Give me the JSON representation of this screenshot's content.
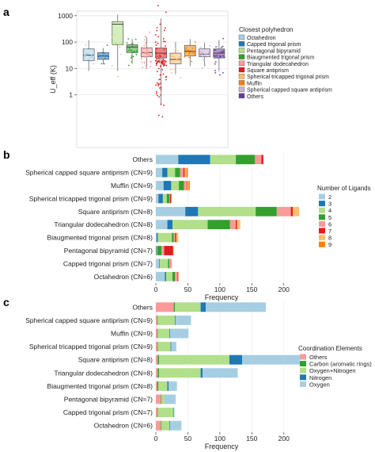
{
  "chart_data": [
    {
      "panel": "a",
      "type": "box",
      "ylabel": "U_eff (K)",
      "yscale": "log",
      "ylim": [
        0.01,
        1500
      ],
      "yticks": [
        {
          "v": 1,
          "label": "1"
        },
        {
          "v": 10,
          "label": "10"
        },
        {
          "v": 100,
          "label": "100"
        },
        {
          "v": 1000,
          "label": "1000"
        }
      ],
      "legend": {
        "title": "Closest polyhedron",
        "placement": "right",
        "items": [
          "Octahedron",
          "Capped trigonal prism",
          "Pentagonal bipyramid",
          "Biaugmented trigonal prism",
          "Triangular dodecahedron",
          "Square antiprism",
          "Spherical tricapped trigonal prism",
          "Muffin",
          "Spherical capped square antiprism",
          "Others"
        ]
      },
      "series": [
        {
          "name": "Octahedron",
          "color": "#a6cee3",
          "q1": 20,
          "median": 32,
          "q3": 55,
          "wlo": 8,
          "whi": 120,
          "n": 18
        },
        {
          "name": "Capped trigonal prism",
          "color": "#1f78b4",
          "q1": 22,
          "median": 30,
          "q3": 40,
          "wlo": 15,
          "whi": 60,
          "n": 14
        },
        {
          "name": "Pentagonal bipyramid",
          "color": "#b2df8a",
          "q1": 80,
          "median": 480,
          "q3": 600,
          "wlo": 8,
          "whi": 1100,
          "n": 12
        },
        {
          "name": "Biaugmented trigonal prism",
          "color": "#33a02c",
          "q1": 40,
          "median": 65,
          "q3": 80,
          "wlo": 15,
          "whi": 130,
          "n": 25
        },
        {
          "name": "Triangular dodecahedron",
          "color": "#fb9a99",
          "q1": 28,
          "median": 40,
          "q3": 60,
          "wlo": 10,
          "whi": 150,
          "n": 45
        },
        {
          "name": "Square antiprism",
          "color": "#e31a1c",
          "q1": 25,
          "median": 38,
          "q3": 60,
          "wlo": 0.4,
          "whi": 800,
          "n": 90
        },
        {
          "name": "Spherical tricapped trigonal prism",
          "color": "#fdbf6f",
          "q1": 15,
          "median": 22,
          "q3": 38,
          "wlo": 6,
          "whi": 100,
          "n": 15
        },
        {
          "name": "Muffin",
          "color": "#ff7f00",
          "q1": 30,
          "median": 45,
          "q3": 75,
          "wlo": 12,
          "whi": 130,
          "n": 20
        },
        {
          "name": "Spherical capped square antiprism",
          "color": "#cab2d6",
          "q1": 28,
          "median": 35,
          "q3": 55,
          "wlo": 12,
          "whi": 95,
          "n": 22
        },
        {
          "name": "Others",
          "color": "#6a3d9a",
          "q1": 25,
          "median": 38,
          "q3": 55,
          "wlo": 8,
          "whi": 120,
          "n": 30
        }
      ]
    },
    {
      "panel": "b",
      "type": "stacked-bar-horizontal",
      "xlabel": "Frequency",
      "xlim": [
        0,
        230
      ],
      "xticks": [
        0,
        50,
        100,
        150,
        200
      ],
      "categories": [
        "Others",
        "Spherical capped square antiprism (CN=9)",
        "Muffin (CN=9)",
        "Spherical tricapped trigonal prism (CN=9)",
        "Square antiprism (CN=8)",
        "Triangular dodecahedron (CN=8)",
        "Biaugmented trigonal prism (CN=8)",
        "Pentagonal bipyramid (CN=7)",
        "Capped trigonal prism (CN=7)",
        "Octahedron (CN=6)"
      ],
      "legend": {
        "title": "Number of Ligands",
        "placement": "right"
      },
      "series": [
        {
          "name": "2",
          "color": "#a6cee3",
          "values": [
            35,
            10,
            12,
            4,
            46,
            18,
            1,
            0,
            5,
            14
          ]
        },
        {
          "name": "3",
          "color": "#1f78b4",
          "values": [
            50,
            8,
            12,
            7,
            20,
            8,
            2,
            1,
            1,
            2
          ]
        },
        {
          "name": "4",
          "color": "#b2df8a",
          "values": [
            40,
            12,
            12,
            6,
            90,
            55,
            22,
            1,
            13,
            10
          ]
        },
        {
          "name": "5",
          "color": "#33a02c",
          "values": [
            30,
            8,
            8,
            4,
            33,
            35,
            3,
            7,
            2,
            4
          ]
        },
        {
          "name": "6",
          "color": "#fb9a99",
          "values": [
            10,
            5,
            4,
            1,
            22,
            9,
            2,
            4,
            4,
            4
          ]
        },
        {
          "name": "7",
          "color": "#e31a1c",
          "values": [
            3,
            2,
            1,
            2,
            3,
            2,
            2,
            14,
            0,
            1
          ]
        },
        {
          "name": "8",
          "color": "#fdbf6f",
          "values": [
            0,
            3,
            2,
            1,
            10,
            5,
            3,
            1,
            0,
            1
          ]
        },
        {
          "name": "9",
          "color": "#ff7f00",
          "values": [
            0,
            2,
            2,
            0,
            0,
            0,
            0,
            0,
            0,
            0
          ]
        }
      ]
    },
    {
      "panel": "c",
      "type": "stacked-bar-horizontal",
      "xlabel": "Frequency",
      "xlim": [
        0,
        230
      ],
      "xticks": [
        0,
        50,
        100,
        150,
        200
      ],
      "categories": [
        "Others",
        "Spherical capped square antiprism (CN=9)",
        "Muffin (CN=9)",
        "Spherical tricapped trigonal prism (CN=9)",
        "Square antiprism (CN=8)",
        "Triangular dodecahedron (CN=8)",
        "Biaugmented trigonal prism (CN=8)",
        "Pentagonal bipyramid (CN=7)",
        "Capped trigonal prism (CN=7)",
        "Octahedron (CN=6)"
      ],
      "legend": {
        "title": "Coordination Elements",
        "placement": "right"
      },
      "series": [
        {
          "name": "Others",
          "color": "#fb9a99",
          "values": [
            28,
            2,
            2,
            2,
            3,
            3,
            2,
            8,
            2,
            8
          ]
        },
        {
          "name": "Carbon (aromatic rings)",
          "color": "#33a02c",
          "values": [
            2,
            1,
            1,
            1,
            2,
            2,
            2,
            1,
            1,
            1
          ]
        },
        {
          "name": "Oxygen+Nitrogen",
          "color": "#b2df8a",
          "values": [
            40,
            27,
            18,
            20,
            110,
            65,
            14,
            4,
            24,
            12
          ]
        },
        {
          "name": "Nitrogen",
          "color": "#1f78b4",
          "values": [
            8,
            1,
            1,
            1,
            20,
            3,
            2,
            0,
            1,
            1
          ]
        },
        {
          "name": "Oxygen",
          "color": "#a6cee3",
          "values": [
            94,
            24,
            29,
            8,
            90,
            55,
            13,
            18,
            1,
            18
          ]
        }
      ]
    }
  ],
  "panels": {
    "a": "a",
    "b": "b",
    "c": "c"
  }
}
